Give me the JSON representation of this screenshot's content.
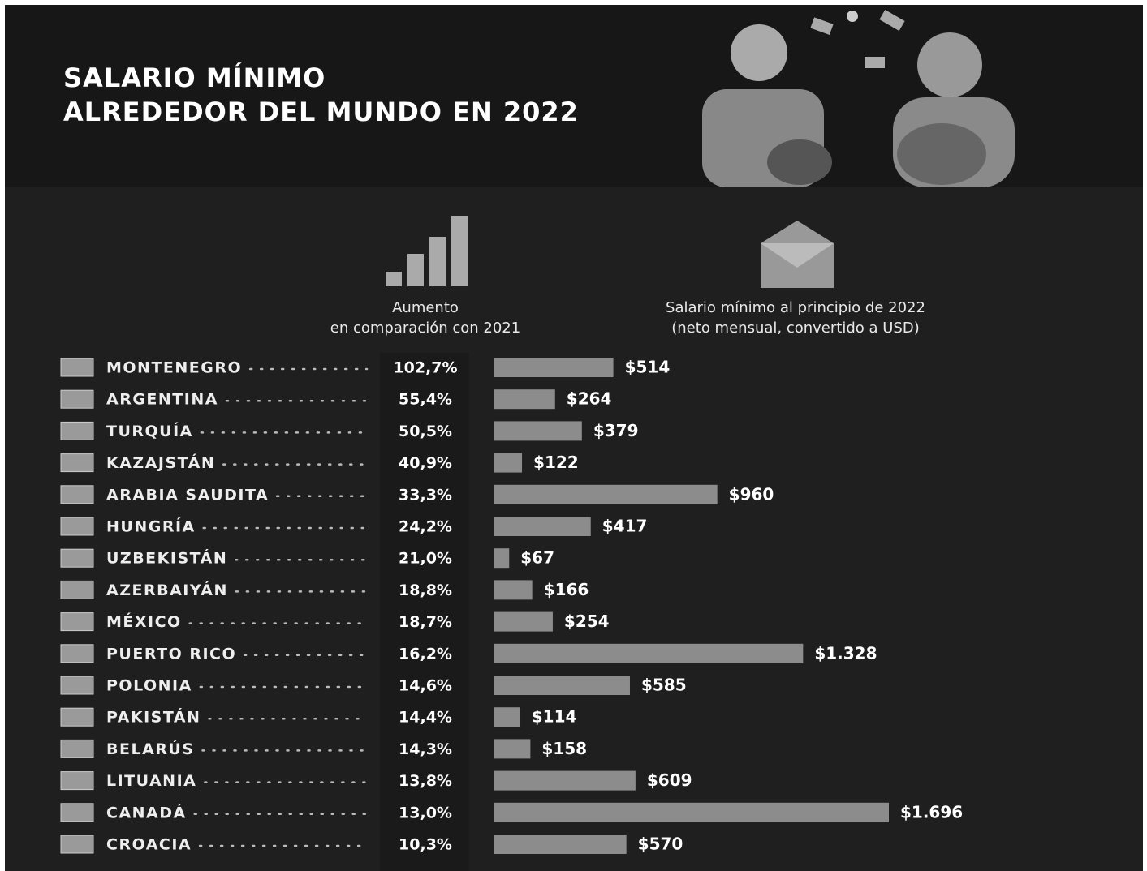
{
  "chart_data": {
    "type": "bar",
    "orientation": "horizontal",
    "title": [
      "SALARIO MÍNIMO",
      "ALREDEDOR DEL MUNDO EN 2022"
    ],
    "categories": [
      "MONTENEGRO",
      "ARGENTINA",
      "TURQUÍA",
      "KAZAJSTÁN",
      "ARABIA SAUDITA",
      "HUNGRÍA",
      "UZBEKISTÁN",
      "AZERBAIYÁN",
      "MÉXICO",
      "PUERTO RICO",
      "POLONIA",
      "PAKISTÁN",
      "BELARÚS",
      "LITUANIA",
      "CANADÁ",
      "CROACIA"
    ],
    "increase": {
      "header": [
        "Aumento",
        "en comparación con 2021"
      ],
      "values": [
        102.7,
        55.4,
        50.5,
        40.9,
        33.3,
        24.2,
        21.0,
        18.8,
        18.7,
        16.2,
        14.6,
        14.4,
        14.3,
        13.8,
        13.0,
        10.3
      ],
      "value_labels": [
        "102,7%",
        "55,4%",
        "50,5%",
        "40,9%",
        "33,3%",
        "24,2%",
        "21,0%",
        "18,8%",
        "18,7%",
        "16,2%",
        "14,6%",
        "14,4%",
        "14,3%",
        "13,8%",
        "13,0%",
        "10,3%"
      ]
    },
    "values_header": [
      "Salario mínimo al principio de 2022",
      "(neto mensual, convertido a USD)"
    ],
    "values": [
      514,
      264,
      379,
      122,
      960,
      417,
      67,
      166,
      254,
      1328,
      585,
      114,
      158,
      609,
      1696,
      570
    ],
    "value_labels": [
      "$514",
      "$264",
      "$379",
      "$122",
      "$960",
      "$417",
      "$67",
      "$166",
      "$254",
      "$1.328",
      "$585",
      "$114",
      "$158",
      "$609",
      "$1.696",
      "$570"
    ],
    "color": "#8c8c8c"
  }
}
